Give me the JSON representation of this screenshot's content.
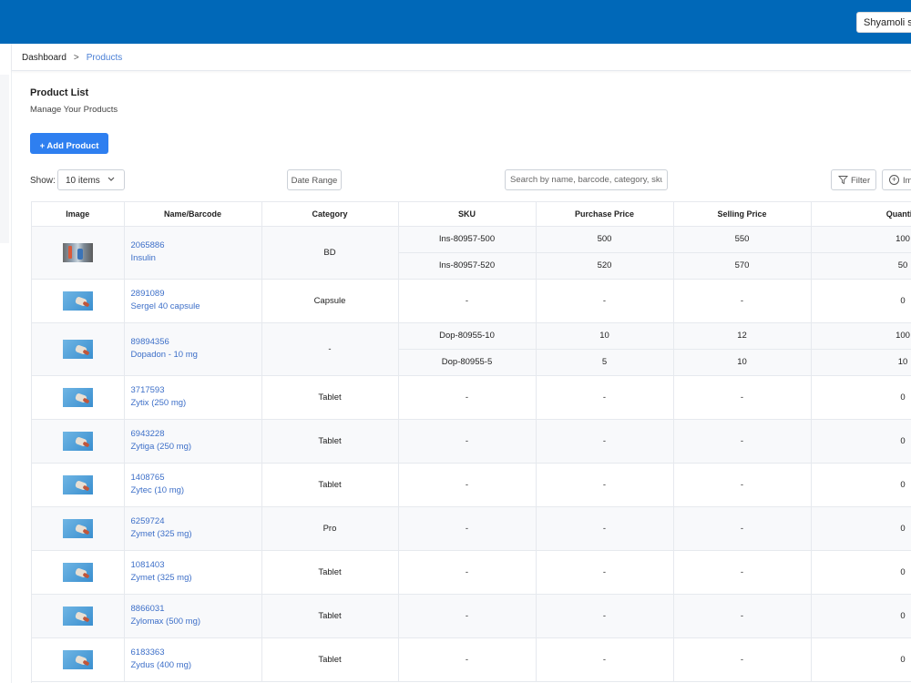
{
  "header": {
    "store_name": "Shyamoli shop"
  },
  "breadcrumb": {
    "home": "Dashboard",
    "separator": ">",
    "current": "Products"
  },
  "page": {
    "title": "Product List",
    "subtitle": "Manage Your Products"
  },
  "toolbar": {
    "add_label": "+ Add Product",
    "show_label": "Show:",
    "show_value": "10 items",
    "date_range_label": "Date Range",
    "search_placeholder": "Search by name, barcode, category, sku",
    "filter_label": "Filter",
    "import_label": "Import"
  },
  "table": {
    "columns": [
      "Image",
      "Name/Barcode",
      "Category",
      "SKU",
      "Purchase Price",
      "Selling Price",
      "Quantity"
    ],
    "products": [
      {
        "barcode": "2065886",
        "name": "Insulin",
        "category": "BD",
        "image": "photo",
        "variants": [
          {
            "sku": "Ins-80957-500",
            "purchase": "500",
            "selling": "550",
            "qty": "100"
          },
          {
            "sku": "Ins-80957-520",
            "purchase": "520",
            "selling": "570",
            "qty": "50"
          }
        ]
      },
      {
        "barcode": "2891089",
        "name": "Sergel 40 capsule",
        "category": "Capsule",
        "image": "placeholder",
        "variants": [
          {
            "sku": "-",
            "purchase": "-",
            "selling": "-",
            "qty": "0"
          }
        ]
      },
      {
        "barcode": "89894356",
        "name": "Dopadon - 10 mg",
        "category": "-",
        "image": "placeholder",
        "variants": [
          {
            "sku": "Dop-80955-10",
            "purchase": "10",
            "selling": "12",
            "qty": "100"
          },
          {
            "sku": "Dop-80955-5",
            "purchase": "5",
            "selling": "10",
            "qty": "10"
          }
        ]
      },
      {
        "barcode": "3717593",
        "name": "Zytix (250 mg)",
        "category": "Tablet",
        "image": "placeholder",
        "variants": [
          {
            "sku": "-",
            "purchase": "-",
            "selling": "-",
            "qty": "0"
          }
        ]
      },
      {
        "barcode": "6943228",
        "name": "Zytiga (250 mg)",
        "category": "Tablet",
        "image": "placeholder",
        "variants": [
          {
            "sku": "-",
            "purchase": "-",
            "selling": "-",
            "qty": "0"
          }
        ]
      },
      {
        "barcode": "1408765",
        "name": "Zytec (10 mg)",
        "category": "Tablet",
        "image": "placeholder",
        "variants": [
          {
            "sku": "-",
            "purchase": "-",
            "selling": "-",
            "qty": "0"
          }
        ]
      },
      {
        "barcode": "6259724",
        "name": "Zymet (325 mg)",
        "category": "Pro",
        "image": "placeholder",
        "variants": [
          {
            "sku": "-",
            "purchase": "-",
            "selling": "-",
            "qty": "0"
          }
        ]
      },
      {
        "barcode": "1081403",
        "name": "Zymet (325 mg)",
        "category": "Tablet",
        "image": "placeholder",
        "variants": [
          {
            "sku": "-",
            "purchase": "-",
            "selling": "-",
            "qty": "0"
          }
        ]
      },
      {
        "barcode": "8866031",
        "name": "Zylomax (500 mg)",
        "category": "Tablet",
        "image": "placeholder",
        "variants": [
          {
            "sku": "-",
            "purchase": "-",
            "selling": "-",
            "qty": "0"
          }
        ]
      },
      {
        "barcode": "6183363",
        "name": "Zydus (400 mg)",
        "category": "Tablet",
        "image": "placeholder",
        "variants": [
          {
            "sku": "-",
            "purchase": "-",
            "selling": "-",
            "qty": "0"
          }
        ]
      }
    ]
  },
  "colors": {
    "header": "#0068b8",
    "primary_button": "#2e7ff0",
    "link": "#3d6fc8"
  },
  "icons": {
    "filter": "filter-icon",
    "import": "plus-circle-icon",
    "select": "chevron-down-icon",
    "thumbnail": "product-image"
  }
}
